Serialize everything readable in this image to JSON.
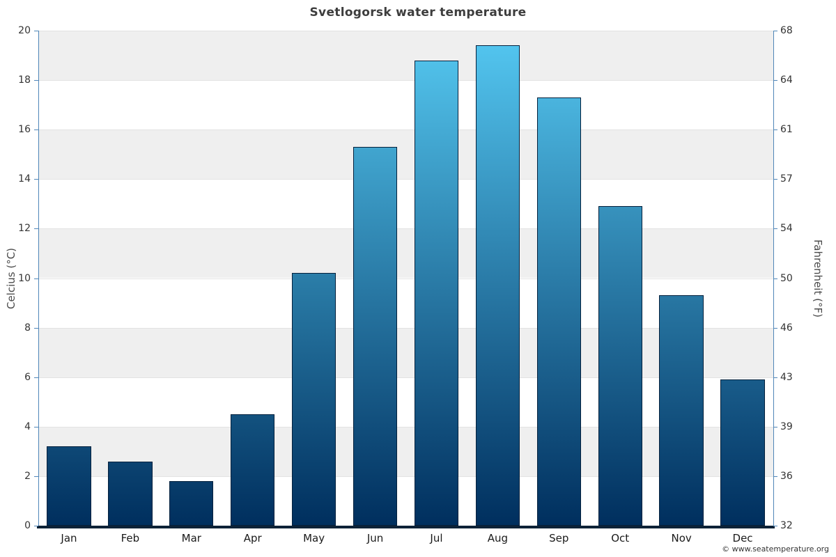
{
  "title": "Svetlogorsk water temperature",
  "y_left_label": "Celcius (°C)",
  "y_right_label": "Fahrenheit (°F)",
  "copyright": "© www.seatemperature.org",
  "colors": {
    "band_gray": "#efefef",
    "band_white": "#ffffff",
    "gridline": "#e2e2e2",
    "axis_line": "#4f86b8",
    "bottom_axis": "#0d2237",
    "bar_top": "#55c9f2",
    "bar_bottom": "#002f5e",
    "bar_border": "#04203c",
    "tick_text": "#333333",
    "month_text": "#1a1a1a"
  },
  "chart_data": {
    "type": "bar",
    "title": "Svetlogorsk water temperature",
    "categories": [
      "Jan",
      "Feb",
      "Mar",
      "Apr",
      "May",
      "Jun",
      "Jul",
      "Aug",
      "Sep",
      "Oct",
      "Nov",
      "Dec"
    ],
    "values": [
      3.2,
      2.6,
      1.8,
      4.5,
      10.2,
      15.3,
      18.8,
      19.4,
      17.3,
      12.9,
      9.3,
      5.9
    ],
    "xlabel": "",
    "ylabel_left": "Celcius (°C)",
    "ylabel_right": "Fahrenheit (°F)",
    "ylim_left": [
      0,
      20
    ],
    "yticks_left": [
      0,
      2,
      4,
      6,
      8,
      10,
      12,
      14,
      16,
      18,
      20
    ],
    "yticks_right": [
      32,
      36,
      39,
      43,
      46,
      50,
      54,
      57,
      61,
      64,
      68
    ],
    "grid": "horizontal-alternating-bands",
    "legend": "none",
    "bar_gradient": "shared vertical gradient anchored to plot area: light blue at 20°C, dark navy at 0°C"
  }
}
